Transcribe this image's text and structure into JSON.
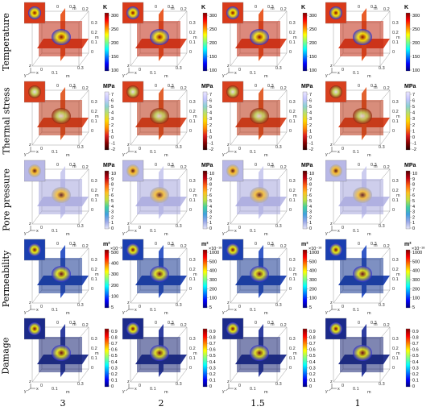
{
  "figure": {
    "row_labels": [
      "Temperature",
      "Thermal stress",
      "Pore pressure",
      "Permeability",
      "Damage"
    ],
    "column_labels": [
      "3",
      "2",
      "1.5",
      "1"
    ],
    "axes": {
      "tick_values": [
        "0",
        "0.1",
        "0.2",
        "0.3"
      ],
      "unit": "m",
      "triad": [
        "y",
        "z",
        "x"
      ]
    },
    "rows": [
      {
        "key": "temperature",
        "colormap": "jet",
        "unit_label": "K",
        "panels": [
          {
            "ticks": [
              "300",
              "250",
              "200",
              "150",
              "100"
            ],
            "exponent": ""
          },
          {
            "ticks": [
              "300",
              "250",
              "200",
              "150",
              "100"
            ],
            "exponent": ""
          },
          {
            "ticks": [
              "300",
              "250",
              "200",
              "150",
              "100"
            ],
            "exponent": ""
          },
          {
            "ticks": [
              "300",
              "250",
              "200",
              "150",
              "100"
            ],
            "exponent": ""
          }
        ]
      },
      {
        "key": "thermal_stress",
        "colormap": "stress",
        "unit_label": "MPa",
        "panels": [
          {
            "ticks": [
              "7",
              "6",
              "5",
              "4",
              "3",
              "2",
              "1",
              "0",
              "-1",
              "-2"
            ],
            "exponent": ""
          },
          {
            "ticks": [
              "7",
              "6",
              "5",
              "4",
              "3",
              "2",
              "1",
              "0",
              "-1",
              "-2"
            ],
            "exponent": ""
          },
          {
            "ticks": [
              "7",
              "6",
              "5",
              "4",
              "3",
              "2",
              "1",
              "0",
              "-1",
              "-2"
            ],
            "exponent": ""
          },
          {
            "ticks": [
              "7",
              "6",
              "5",
              "4",
              "3",
              "2",
              "1",
              "0",
              "-1",
              "-2"
            ],
            "exponent": ""
          }
        ]
      },
      {
        "key": "pore_pressure",
        "colormap": "pressure",
        "unit_label": "MPa",
        "panels": [
          {
            "ticks": [
              "10",
              "9",
              "8",
              "7",
              "6",
              "5",
              "4",
              "3",
              "2",
              "1",
              "0"
            ],
            "exponent": ""
          },
          {
            "ticks": [
              "10",
              "9",
              "8",
              "7",
              "6",
              "5",
              "4",
              "3",
              "2",
              "1",
              "0"
            ],
            "exponent": ""
          },
          {
            "ticks": [
              "10",
              "9",
              "8",
              "7",
              "6",
              "5",
              "4",
              "3",
              "2",
              "1",
              "0"
            ],
            "exponent": ""
          },
          {
            "ticks": [
              "10",
              "9",
              "8",
              "7",
              "6",
              "5",
              "4",
              "3",
              "2",
              "1",
              "0"
            ],
            "exponent": ""
          }
        ]
      },
      {
        "key": "permeability",
        "colormap": "jet",
        "unit_label": "m²",
        "panels": [
          {
            "ticks": [
              "500",
              "400",
              "300",
              "200",
              "100",
              "5"
            ],
            "exponent": "×10⁻¹⁸"
          },
          {
            "ticks": [
              "1000",
              "500",
              "400",
              "300",
              "200",
              "100",
              "5"
            ],
            "exponent": "×10⁻¹⁸"
          },
          {
            "ticks": [
              "1000",
              "500",
              "400",
              "300",
              "200",
              "100",
              "5"
            ],
            "exponent": "×10⁻¹⁸"
          },
          {
            "ticks": [
              "1000",
              "500",
              "400",
              "300",
              "200",
              "100",
              "5"
            ],
            "exponent": "×10⁻¹⁸"
          }
        ]
      },
      {
        "key": "damage",
        "colormap": "jet",
        "unit_label": "",
        "panels": [
          {
            "ticks": [
              "0.9",
              "0.8",
              "0.7",
              "0.6",
              "0.5",
              "0.4",
              "0.3",
              "0.2",
              "0.1",
              "0"
            ],
            "exponent": ""
          },
          {
            "ticks": [
              "0.9",
              "0.8",
              "0.7",
              "0.6",
              "0.5",
              "0.4",
              "0.3",
              "0.2",
              "0.1",
              "0"
            ],
            "exponent": ""
          },
          {
            "ticks": [
              "0.9",
              "0.8",
              "0.7",
              "0.6",
              "0.5",
              "0.4",
              "0.3",
              "0.2",
              "0.1",
              "0"
            ],
            "exponent": ""
          },
          {
            "ticks": [
              "0.9",
              "0.8",
              "0.7",
              "0.6",
              "0.5",
              "0.4",
              "0.3",
              "0.2",
              "0.1",
              "0"
            ],
            "exponent": ""
          }
        ]
      }
    ]
  }
}
